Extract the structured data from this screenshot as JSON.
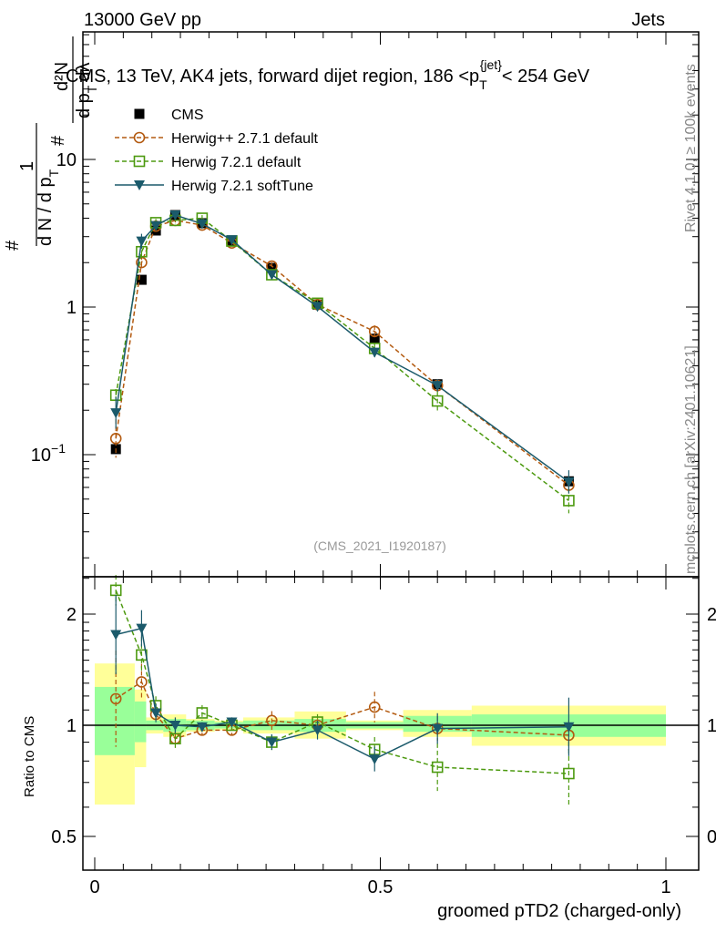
{
  "header": {
    "left": "13000 GeV pp",
    "right": "Jets"
  },
  "side_labels": {
    "rivet": "Rivet 4.1.0, ≥ 100k events",
    "mcplots": "mcplots.cern.ch [arXiv:2401.10621]"
  },
  "chart_data": {
    "type": "line",
    "title_parts": {
      "main": "CMS, 13 TeV, AK4 jets, forward dijet region, 186 <p",
      "sub": "T",
      "sup": "{jet}",
      "end": "< 254 GeV"
    },
    "analysis_id": "(CMS_2021_I1920187)",
    "ylabel_parts": {
      "one": "1",
      "den": "d N / d p",
      "den_sub": "T",
      "num": "d²N",
      "den2": "d p",
      "den2_sub": "T",
      "den2_end": "dλ",
      "hash": "#"
    },
    "xlabel": "groomed pTD2 (charged-only)",
    "ratio_ylabel": "Ratio to CMS",
    "xlim": [
      -0.02,
      1.06
    ],
    "ylim": [
      0.0149,
      73
    ],
    "yscale": "log",
    "ratio_ylim": [
      0.406,
      2.52
    ],
    "x_ticks": [
      {
        "v": 0,
        "label": "0"
      },
      {
        "v": 0.5,
        "label": "0.5"
      },
      {
        "v": 1,
        "label": "1"
      }
    ],
    "y_ticks": [
      {
        "v": 0.1,
        "label": "10",
        "exp": "−1"
      },
      {
        "v": 1,
        "label": "1",
        "exp": ""
      },
      {
        "v": 10,
        "label": "10",
        "exp": ""
      }
    ],
    "ratio_ticks": [
      {
        "v": 2,
        "label": "2"
      },
      {
        "v": 1,
        "label": "1"
      },
      {
        "v": 0.5,
        "label": "0.5"
      }
    ],
    "x": [
      0.037,
      0.082,
      0.107,
      0.141,
      0.188,
      0.24,
      0.31,
      0.39,
      0.49,
      0.6,
      0.83
    ],
    "bin_edges": [
      0,
      0.07,
      0.09,
      0.12,
      0.16,
      0.21,
      0.26,
      0.35,
      0.44,
      0.54,
      0.66,
      1.0
    ],
    "data": {
      "name": "CMS",
      "color": "#000000",
      "values": [
        0.109,
        1.53,
        3.3,
        4.2,
        3.7,
        2.8,
        1.84,
        1.04,
        0.61,
        0.3,
        0.066
      ],
      "band_stat": [
        [
          0.83,
          1.27
        ],
        [
          0.9,
          1.16
        ],
        [
          0.97,
          1.03
        ],
        [
          0.96,
          1.04
        ],
        [
          0.97,
          1.03
        ],
        [
          0.98,
          1.02
        ],
        [
          0.97,
          1.03
        ],
        [
          0.96,
          1.04
        ],
        [
          0.98,
          1.02
        ],
        [
          0.96,
          1.06
        ],
        [
          0.93,
          1.07
        ]
      ],
      "band_total": [
        [
          0.61,
          1.47
        ],
        [
          0.77,
          1.25
        ],
        [
          0.95,
          1.05
        ],
        [
          0.93,
          1.07
        ],
        [
          0.96,
          1.04
        ],
        [
          0.97,
          1.03
        ],
        [
          0.95,
          1.05
        ],
        [
          0.92,
          1.09
        ],
        [
          0.97,
          1.03
        ],
        [
          0.93,
          1.1
        ],
        [
          0.88,
          1.13
        ]
      ]
    },
    "series": [
      {
        "name": "Herwig++ 2.7.1 default",
        "color": "#b35a10",
        "marker": "circle",
        "dash": true,
        "ratio": [
          1.18,
          1.31,
          1.07,
          0.92,
          0.97,
          0.97,
          1.03,
          1.0,
          1.12,
          0.98,
          0.94
        ],
        "rel_err": [
          0.35,
          0.12,
          0.04,
          0.04,
          0.03,
          0.03,
          0.06,
          0.04,
          0.1,
          0.08,
          0.1
        ]
      },
      {
        "name": "Herwig 7.2.1 default",
        "color": "#4d9a10",
        "marker": "square",
        "dash": true,
        "ratio": [
          2.32,
          1.55,
          1.13,
          0.92,
          1.08,
          1.0,
          0.9,
          1.02,
          0.86,
          0.77,
          0.74
        ],
        "rel_err": [
          0.1,
          0.12,
          0.06,
          0.06,
          0.05,
          0.03,
          0.05,
          0.05,
          0.08,
          0.16,
          0.22
        ]
      },
      {
        "name": "Herwig 7.2.1 softTune",
        "color": "#1b5a6b",
        "marker": "triangle",
        "dash": false,
        "ratio": [
          1.76,
          1.83,
          1.08,
          1.0,
          0.99,
          1.02,
          0.9,
          0.97,
          0.81,
          0.98,
          0.99
        ],
        "rel_err": [
          0.28,
          0.12,
          0.06,
          0.05,
          0.03,
          0.03,
          0.05,
          0.06,
          0.08,
          0.1,
          0.2
        ]
      }
    ]
  }
}
